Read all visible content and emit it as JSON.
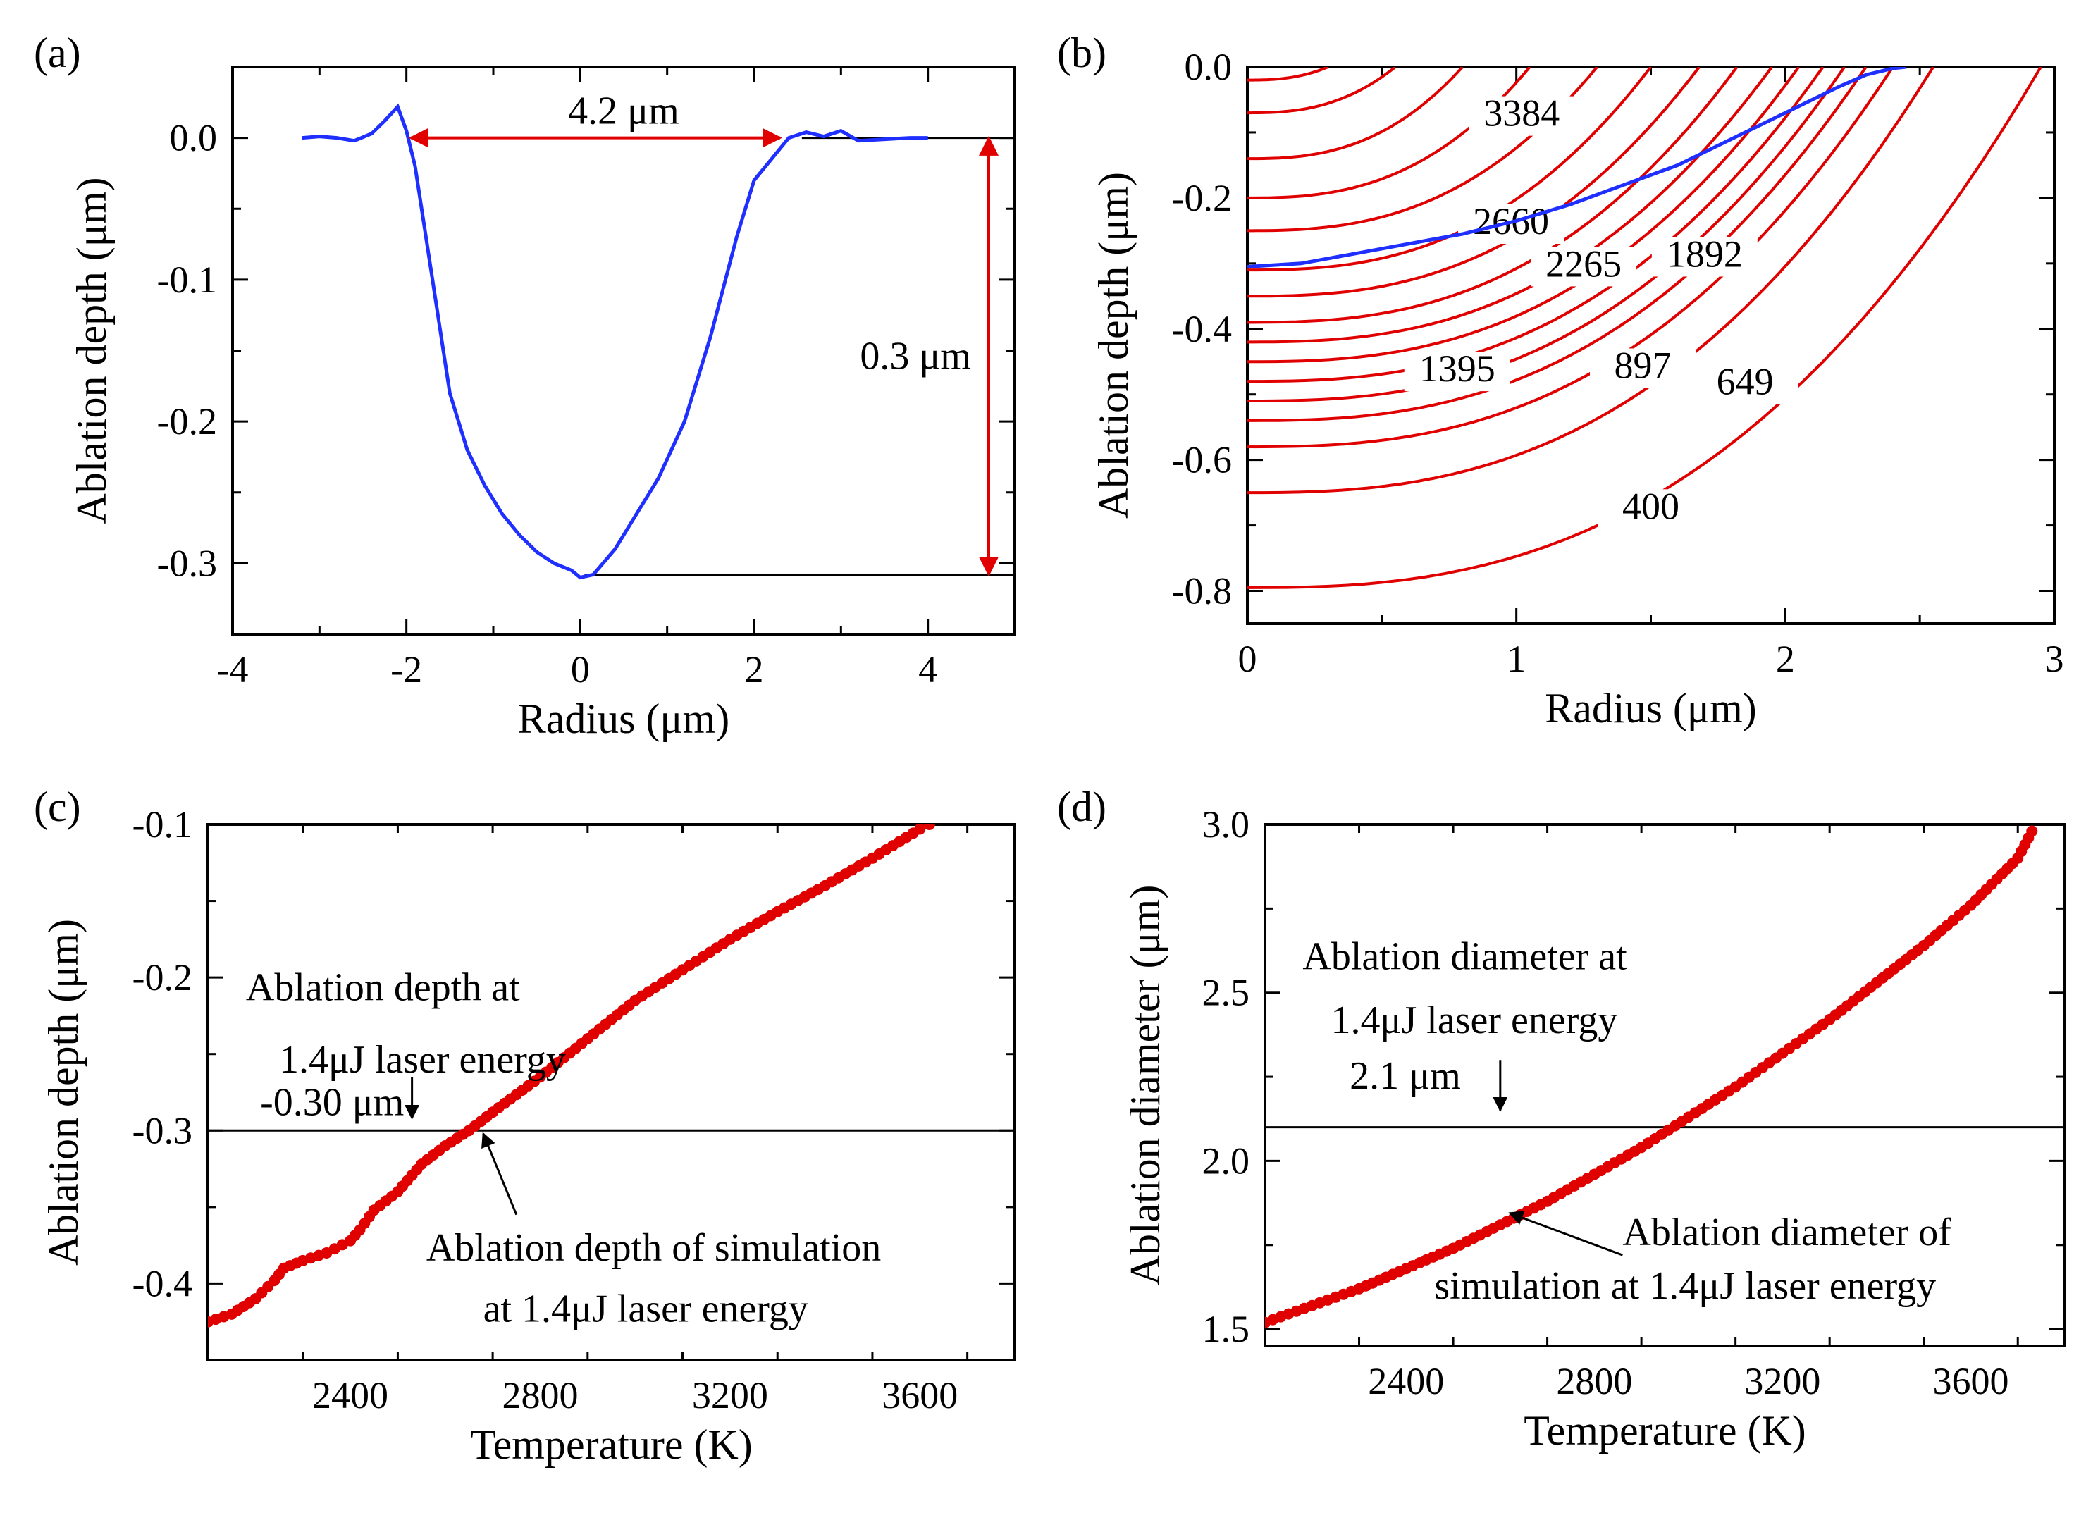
{
  "chart_data": [
    {
      "panel": "(a)",
      "type": "line",
      "xlabel": "Radius (μm)",
      "ylabel": "Ablation depth (μm)",
      "xlim": [
        -4,
        5
      ],
      "ylim": [
        -0.35,
        0.05
      ],
      "xticks": [
        -4,
        -2,
        0,
        2,
        4
      ],
      "xtick_labels": [
        "-4",
        "-2",
        "0",
        "2",
        "4"
      ],
      "yticks": [
        0.0,
        -0.1,
        -0.2,
        -0.3
      ],
      "ytick_labels": [
        "0.0",
        "-0.1",
        "-0.2",
        "-0.3"
      ],
      "series": [
        {
          "name": "ablation profile",
          "color": "#1f2fff",
          "x": [
            -3.2,
            -3.0,
            -2.8,
            -2.6,
            -2.4,
            -2.25,
            -2.1,
            -2.0,
            -1.9,
            -1.7,
            -1.5,
            -1.3,
            -1.1,
            -0.9,
            -0.7,
            -0.5,
            -0.3,
            -0.1,
            0.0,
            0.15,
            0.4,
            0.6,
            0.9,
            1.2,
            1.5,
            1.8,
            2.0,
            2.2,
            2.4,
            2.6,
            2.8,
            3.0,
            3.2,
            3.5,
            3.8,
            4.0
          ],
          "y": [
            0.0,
            0.001,
            0.0,
            -0.002,
            0.003,
            0.012,
            0.022,
            0.005,
            -0.02,
            -0.1,
            -0.18,
            -0.22,
            -0.245,
            -0.265,
            -0.28,
            -0.292,
            -0.3,
            -0.305,
            -0.31,
            -0.308,
            -0.29,
            -0.27,
            -0.24,
            -0.2,
            -0.14,
            -0.07,
            -0.03,
            -0.015,
            0.0,
            0.004,
            0.001,
            0.005,
            -0.002,
            -0.001,
            0.0,
            0.0
          ]
        }
      ],
      "reference_lines": [
        {
          "type": "horizontal",
          "y": 0.0,
          "from_x": 2.55,
          "to_x": 5,
          "color": "#000000"
        },
        {
          "type": "horizontal",
          "y": -0.308,
          "from_x": 0.05,
          "to_x": 5,
          "color": "#000000"
        }
      ],
      "annotations": [
        {
          "text": "4.2 μm",
          "arrow": "double-horizontal",
          "from_x": -1.95,
          "to_x": 2.3,
          "y": 0.0,
          "color": "#e00000"
        },
        {
          "text": "0.3 μm",
          "arrow": "double-vertical",
          "x": 4.7,
          "from_y": 0.0,
          "to_y": -0.308,
          "color": "#e00000"
        }
      ]
    },
    {
      "panel": "(b)",
      "type": "line",
      "subtype": "contour",
      "xlabel": "Radius (μm)",
      "ylabel": "Ablation depth (μm)",
      "xlim": [
        0,
        3
      ],
      "ylim": [
        -0.85,
        0.0
      ],
      "xticks": [
        0,
        1,
        2,
        3
      ],
      "xtick_labels": [
        "0",
        "1",
        "2",
        "3"
      ],
      "yticks": [
        0.0,
        -0.2,
        -0.4,
        -0.6,
        -0.8
      ],
      "ytick_labels": [
        "0.0",
        "-0.2",
        "-0.4",
        "-0.6",
        "-0.8"
      ],
      "contour_color": "#e00000",
      "contour_depths_at_center": [
        -0.02,
        -0.07,
        -0.14,
        -0.2,
        -0.25,
        -0.31,
        -0.35,
        -0.39,
        -0.42,
        -0.45,
        -0.48,
        -0.51,
        -0.54,
        -0.58,
        -0.65,
        -0.795
      ],
      "contour_x_at_surface": [
        0.3,
        0.55,
        0.8,
        1.05,
        1.3,
        1.5,
        1.68,
        1.82,
        1.95,
        2.05,
        2.14,
        2.22,
        2.3,
        2.4,
        2.55,
        2.95
      ],
      "contour_labels": [
        {
          "text": "3384",
          "x": 1.02,
          "y": -0.09
        },
        {
          "text": "2660",
          "x": 0.98,
          "y": -0.255
        },
        {
          "text": "2265",
          "x": 1.25,
          "y": -0.32
        },
        {
          "text": "1892",
          "x": 1.7,
          "y": -0.305
        },
        {
          "text": "1395",
          "x": 0.78,
          "y": -0.48
        },
        {
          "text": "897",
          "x": 1.47,
          "y": -0.475
        },
        {
          "text": "649",
          "x": 1.85,
          "y": -0.5
        },
        {
          "text": "400",
          "x": 1.5,
          "y": -0.69
        }
      ],
      "series": [
        {
          "name": "measured profile",
          "color": "#1f2fff",
          "x": [
            0.0,
            0.2,
            0.4,
            0.6,
            0.8,
            1.0,
            1.2,
            1.4,
            1.6,
            1.8,
            2.0,
            2.2,
            2.3,
            2.4,
            2.45
          ],
          "y": [
            -0.305,
            -0.3,
            -0.285,
            -0.27,
            -0.255,
            -0.235,
            -0.21,
            -0.18,
            -0.15,
            -0.11,
            -0.07,
            -0.03,
            -0.012,
            -0.002,
            0.0
          ]
        }
      ]
    },
    {
      "panel": "(c)",
      "type": "scatter",
      "xlabel": "Temperature (K)",
      "ylabel": "Ablation depth (μm)",
      "xlim": [
        2100,
        3800
      ],
      "ylim": [
        -0.45,
        -0.1
      ],
      "xticks": [
        2400,
        2800,
        3200,
        3600
      ],
      "xtick_labels": [
        "2400",
        "2800",
        "3200",
        "3600"
      ],
      "yticks": [
        -0.1,
        -0.2,
        -0.3,
        -0.4
      ],
      "ytick_labels": [
        "-0.1",
        "-0.2",
        "-0.3",
        "-0.4"
      ],
      "series": [
        {
          "name": "simulation",
          "color": "#e00000",
          "x": [
            2100,
            2150,
            2200,
            2240,
            2260,
            2300,
            2350,
            2400,
            2420,
            2450,
            2500,
            2550,
            2600,
            2650,
            2700,
            2800,
            2900,
            3000,
            3100,
            3200,
            3300,
            3400,
            3500,
            3600,
            3620
          ],
          "y": [
            -0.425,
            -0.42,
            -0.41,
            -0.398,
            -0.39,
            -0.385,
            -0.38,
            -0.372,
            -0.365,
            -0.352,
            -0.34,
            -0.322,
            -0.31,
            -0.3,
            -0.288,
            -0.265,
            -0.24,
            -0.215,
            -0.195,
            -0.175,
            -0.157,
            -0.14,
            -0.122,
            -0.103,
            -0.1
          ]
        }
      ],
      "reference_lines": [
        {
          "type": "horizontal",
          "y": -0.3,
          "color": "#000000"
        }
      ],
      "annotations": [
        {
          "text": "Ablation depth  at",
          "x": 2180,
          "y": -0.215
        },
        {
          "text": "1.4μJ laser energy",
          "x": 2250,
          "y": -0.262
        },
        {
          "text": "-0.30 μm",
          "x": 2210,
          "y": -0.29
        },
        {
          "text": "Ablation depth of simulation",
          "x": 2560,
          "y": -0.385
        },
        {
          "text": "at 1.4μJ laser energy",
          "x": 2680,
          "y": -0.425
        }
      ]
    },
    {
      "panel": "(d)",
      "type": "scatter",
      "xlabel": "Temperature (K)",
      "ylabel": "Ablation diameter (μm)",
      "xlim": [
        2100,
        3800
      ],
      "ylim": [
        1.45,
        3.0
      ],
      "xticks": [
        2400,
        2800,
        3200,
        3600
      ],
      "xtick_labels": [
        "2400",
        "2800",
        "3200",
        "3600"
      ],
      "yticks": [
        1.5,
        2.0,
        2.5,
        3.0
      ],
      "ytick_labels": [
        "1.5",
        "2.0",
        "2.5",
        "3.0"
      ],
      "series": [
        {
          "name": "simulation",
          "color": "#e00000",
          "x": [
            2100,
            2200,
            2300,
            2400,
            2500,
            2600,
            2700,
            2800,
            2900,
            3000,
            3100,
            3200,
            3300,
            3400,
            3500,
            3600,
            3700,
            3730
          ],
          "y": [
            1.52,
            1.57,
            1.62,
            1.68,
            1.74,
            1.81,
            1.88,
            1.96,
            2.04,
            2.13,
            2.22,
            2.32,
            2.42,
            2.53,
            2.64,
            2.76,
            2.9,
            2.98
          ]
        }
      ],
      "reference_lines": [
        {
          "type": "horizontal",
          "y": 2.1,
          "color": "#000000"
        }
      ],
      "annotations": [
        {
          "text": "Ablation diameter  at",
          "x": 2180,
          "y": 2.57
        },
        {
          "text": "1.4μJ laser energy",
          "x": 2240,
          "y": 2.38
        },
        {
          "text": "2.1 μm",
          "x": 2280,
          "y": 2.215
        },
        {
          "text": "Ablation diameter of",
          "x": 2860,
          "y": 1.75
        },
        {
          "text": "simulation at 1.4μJ laser energy",
          "x": 2460,
          "y": 1.59
        }
      ]
    }
  ]
}
